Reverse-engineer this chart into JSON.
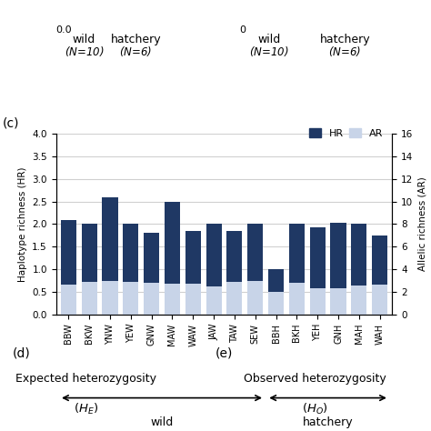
{
  "categories": [
    "BBW",
    "BKW",
    "YNW",
    "YEW",
    "GNW",
    "MAW",
    "WAW",
    "JAW",
    "TAW",
    "SEW",
    "BBH",
    "BKH",
    "YEH",
    "GNH",
    "MAH",
    "WAH"
  ],
  "HR_values": [
    2.1,
    2.0,
    2.6,
    2.0,
    1.8,
    2.5,
    1.85,
    2.0,
    1.85,
    2.0,
    1.0,
    2.0,
    1.93,
    2.03,
    2.0,
    1.75
  ],
  "AR_values": [
    2.67,
    2.87,
    2.95,
    2.92,
    2.8,
    2.75,
    2.75,
    2.5,
    2.88,
    2.97,
    1.98,
    2.85,
    2.37,
    2.3,
    2.6,
    2.67
  ],
  "HR_color": "#1f3864",
  "AR_color": "#c8d4e8",
  "panel_label": "(c)",
  "ylabel_left": "Haplotype richness (HR)",
  "ylabel_right": "Allelic richness (AR)",
  "ylim_left": [
    0.0,
    4.0
  ],
  "ylim_right": [
    0,
    16
  ],
  "yticks_left": [
    0.0,
    0.5,
    1.0,
    1.5,
    2.0,
    2.5,
    3.0,
    3.5,
    4.0
  ],
  "yticks_right": [
    0,
    2,
    4,
    6,
    8,
    10,
    12,
    14,
    16
  ],
  "wild_label": "wild",
  "hatchery_label": "hatchery",
  "wild_indices": [
    0,
    1,
    2,
    3,
    4,
    5,
    6,
    7,
    8,
    9
  ],
  "hatchery_indices": [
    10,
    11,
    12,
    13,
    14,
    15
  ],
  "panel_d_label": "(d)",
  "panel_e_label": "(e)",
  "legend_HR": "HR",
  "legend_AR": "AR",
  "grid_color": "#d0d0d0",
  "background_color": "#ffffff"
}
